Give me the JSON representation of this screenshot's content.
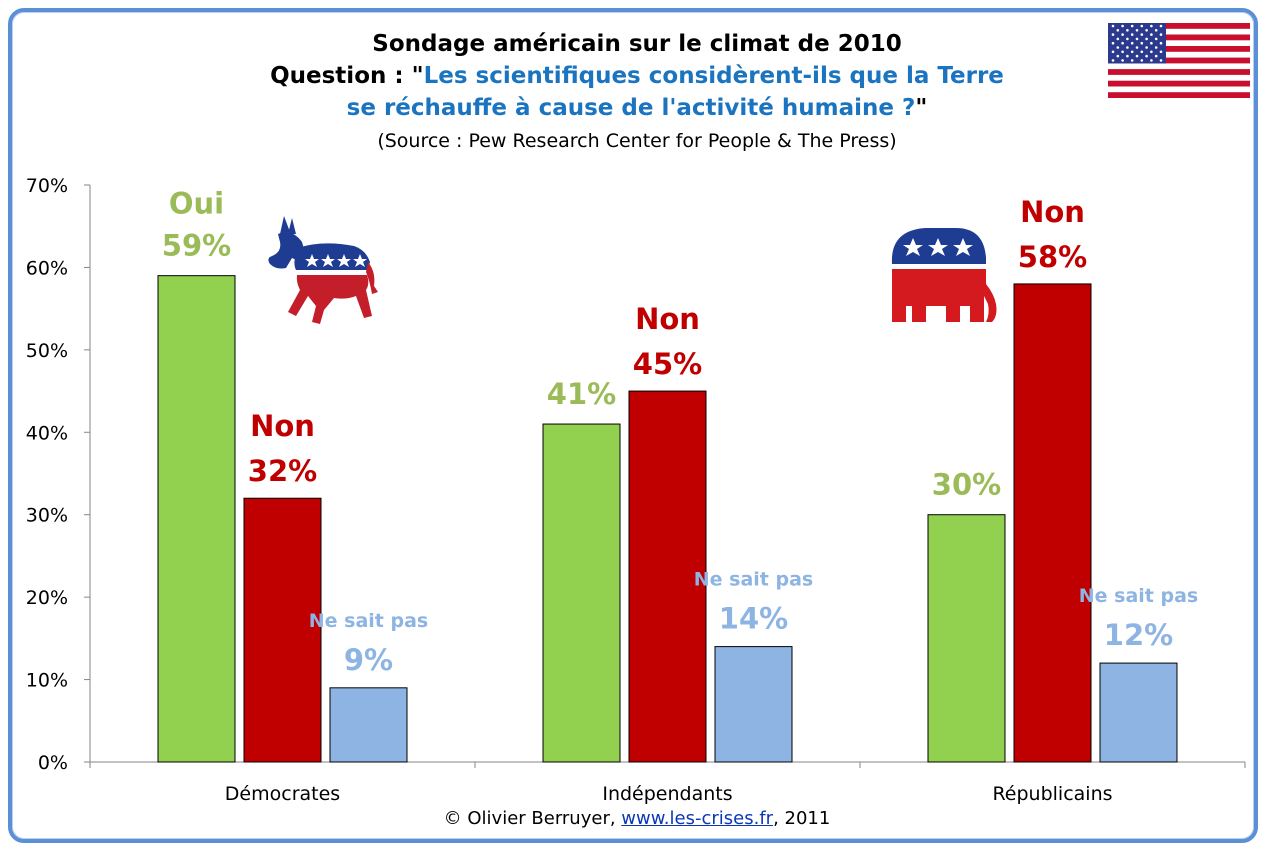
{
  "title": {
    "line1": "Sondage américain sur le climat de 2010",
    "question_prefix": "Question : \"",
    "question_part1": "Les scientifiques considèrent-ils que la Terre",
    "question_part2": "se réchauffe à cause de l'activité humaine ?",
    "question_suffix": "\"",
    "source": "(Source : Pew Research Center for People & The Press)"
  },
  "footer": {
    "copyright": "© Olivier Berruyer, ",
    "link": "www.les-crises.fr",
    "year": ",  2011"
  },
  "colors": {
    "oui": "#92d050",
    "non": "#c00000",
    "nsp": "#8db4e2",
    "oui_label": "#9bbb59",
    "nsp_label": "#8db4e2"
  },
  "chart_data": {
    "type": "bar",
    "title": "Sondage américain sur le climat de 2010",
    "categories": [
      "Démocrates",
      "Indépendants",
      "Républicains"
    ],
    "series": [
      {
        "name": "Oui",
        "values": [
          59,
          41,
          30
        ]
      },
      {
        "name": "Non",
        "values": [
          32,
          45,
          58
        ]
      },
      {
        "name": "Ne sait pas",
        "values": [
          9,
          14,
          12
        ]
      }
    ],
    "data_labels": {
      "oui": [
        "Oui",
        "",
        ""
      ],
      "non": [
        "Non",
        "Non",
        "Non"
      ],
      "nsp": [
        "Ne sait pas",
        "Ne sait pas",
        "Ne sait pas"
      ]
    },
    "value_labels": {
      "oui": [
        "59%",
        "41%",
        "30%"
      ],
      "non": [
        "32%",
        "45%",
        "58%"
      ],
      "nsp": [
        "9%",
        "14%",
        "12%"
      ]
    },
    "y_ticks": [
      "0%",
      "10%",
      "20%",
      "30%",
      "40%",
      "50%",
      "60%",
      "70%"
    ],
    "ylim": [
      0,
      70
    ],
    "grid": false,
    "legend": "none",
    "xlabel": "",
    "ylabel": ""
  }
}
